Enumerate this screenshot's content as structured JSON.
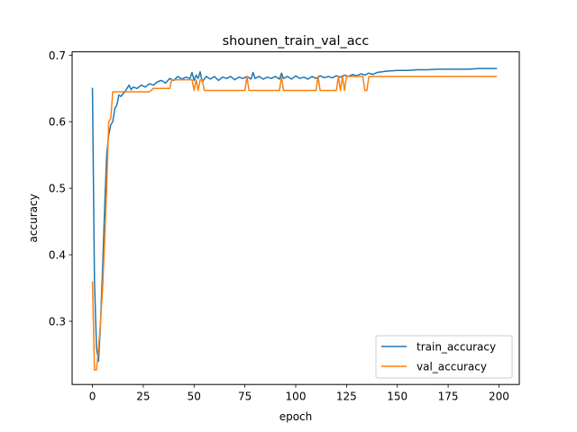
{
  "chart_data": {
    "type": "line",
    "title": "shounen_train_val_acc",
    "xlabel": "epoch",
    "ylabel": "accuracy",
    "xlim": [
      -10,
      210
    ],
    "ylim": [
      0.205,
      0.705
    ],
    "xticks": [
      0,
      25,
      50,
      75,
      100,
      125,
      150,
      175,
      200
    ],
    "yticks": [
      0.3,
      0.4,
      0.5,
      0.6,
      0.7
    ],
    "xtick_labels": [
      "0",
      "25",
      "50",
      "75",
      "100",
      "125",
      "150",
      "175",
      "200"
    ],
    "ytick_labels": [
      "0.3",
      "0.4",
      "0.5",
      "0.6",
      "0.7"
    ],
    "grid": false,
    "legend_position": "lower right",
    "series": [
      {
        "name": "train_accuracy",
        "color": "#1f77b4",
        "x": [
          0,
          1,
          2,
          3,
          4,
          5,
          6,
          7,
          8,
          9,
          10,
          11,
          12,
          13,
          14,
          15,
          16,
          17,
          18,
          19,
          20,
          22,
          24,
          26,
          28,
          30,
          32,
          34,
          36,
          38,
          40,
          42,
          44,
          46,
          48,
          49,
          50,
          51,
          52,
          53,
          54,
          56,
          58,
          60,
          62,
          64,
          66,
          68,
          70,
          72,
          74,
          76,
          78,
          79,
          80,
          82,
          84,
          86,
          88,
          90,
          92,
          93,
          94,
          96,
          98,
          100,
          102,
          104,
          106,
          108,
          110,
          112,
          114,
          116,
          118,
          120,
          122,
          124,
          126,
          128,
          130,
          132,
          134,
          136,
          138,
          140,
          145,
          150,
          155,
          160,
          165,
          170,
          175,
          180,
          185,
          190,
          195,
          199
        ],
        "y": [
          0.651,
          0.36,
          0.26,
          0.24,
          0.3,
          0.38,
          0.47,
          0.55,
          0.58,
          0.595,
          0.6,
          0.62,
          0.625,
          0.64,
          0.638,
          0.642,
          0.645,
          0.65,
          0.655,
          0.648,
          0.652,
          0.65,
          0.655,
          0.652,
          0.657,
          0.655,
          0.66,
          0.662,
          0.658,
          0.665,
          0.662,
          0.668,
          0.664,
          0.667,
          0.665,
          0.674,
          0.662,
          0.67,
          0.665,
          0.675,
          0.66,
          0.668,
          0.664,
          0.668,
          0.662,
          0.667,
          0.665,
          0.668,
          0.663,
          0.667,
          0.665,
          0.668,
          0.664,
          0.674,
          0.665,
          0.668,
          0.664,
          0.667,
          0.665,
          0.668,
          0.664,
          0.673,
          0.665,
          0.668,
          0.664,
          0.669,
          0.665,
          0.667,
          0.664,
          0.668,
          0.665,
          0.669,
          0.666,
          0.668,
          0.666,
          0.669,
          0.667,
          0.67,
          0.668,
          0.671,
          0.669,
          0.672,
          0.67,
          0.673,
          0.671,
          0.674,
          0.676,
          0.677,
          0.677,
          0.678,
          0.678,
          0.679,
          0.679,
          0.679,
          0.679,
          0.68,
          0.68,
          0.68
        ]
      },
      {
        "name": "val_accuracy",
        "color": "#ff7f0e",
        "x": [
          0,
          1,
          2,
          3,
          4,
          5,
          6,
          7,
          8,
          9,
          10,
          11,
          12,
          13,
          14,
          15,
          20,
          25,
          28,
          30,
          35,
          38,
          39,
          40,
          45,
          47,
          48,
          49,
          50,
          51,
          52,
          53,
          54,
          55,
          60,
          65,
          70,
          75,
          76,
          77,
          80,
          85,
          90,
          92,
          93,
          94,
          100,
          105,
          110,
          111,
          112,
          113,
          115,
          118,
          119,
          120,
          121,
          122,
          123,
          124,
          125,
          126,
          127,
          128,
          130,
          132,
          133,
          134,
          135,
          136,
          137,
          138,
          140,
          145,
          150,
          160,
          170,
          180,
          190,
          199
        ],
        "y": [
          0.36,
          0.227,
          0.227,
          0.26,
          0.3,
          0.35,
          0.42,
          0.5,
          0.6,
          0.605,
          0.645,
          0.645,
          0.645,
          0.645,
          0.645,
          0.645,
          0.645,
          0.645,
          0.645,
          0.65,
          0.65,
          0.65,
          0.663,
          0.663,
          0.663,
          0.663,
          0.663,
          0.663,
          0.647,
          0.663,
          0.647,
          0.663,
          0.663,
          0.647,
          0.647,
          0.647,
          0.647,
          0.647,
          0.668,
          0.647,
          0.647,
          0.647,
          0.647,
          0.647,
          0.668,
          0.647,
          0.647,
          0.647,
          0.647,
          0.668,
          0.647,
          0.647,
          0.647,
          0.647,
          0.647,
          0.647,
          0.668,
          0.647,
          0.668,
          0.647,
          0.668,
          0.668,
          0.668,
          0.668,
          0.668,
          0.668,
          0.668,
          0.647,
          0.647,
          0.668,
          0.668,
          0.668,
          0.668,
          0.668,
          0.668,
          0.668,
          0.668,
          0.668,
          0.668,
          0.668
        ]
      }
    ]
  }
}
